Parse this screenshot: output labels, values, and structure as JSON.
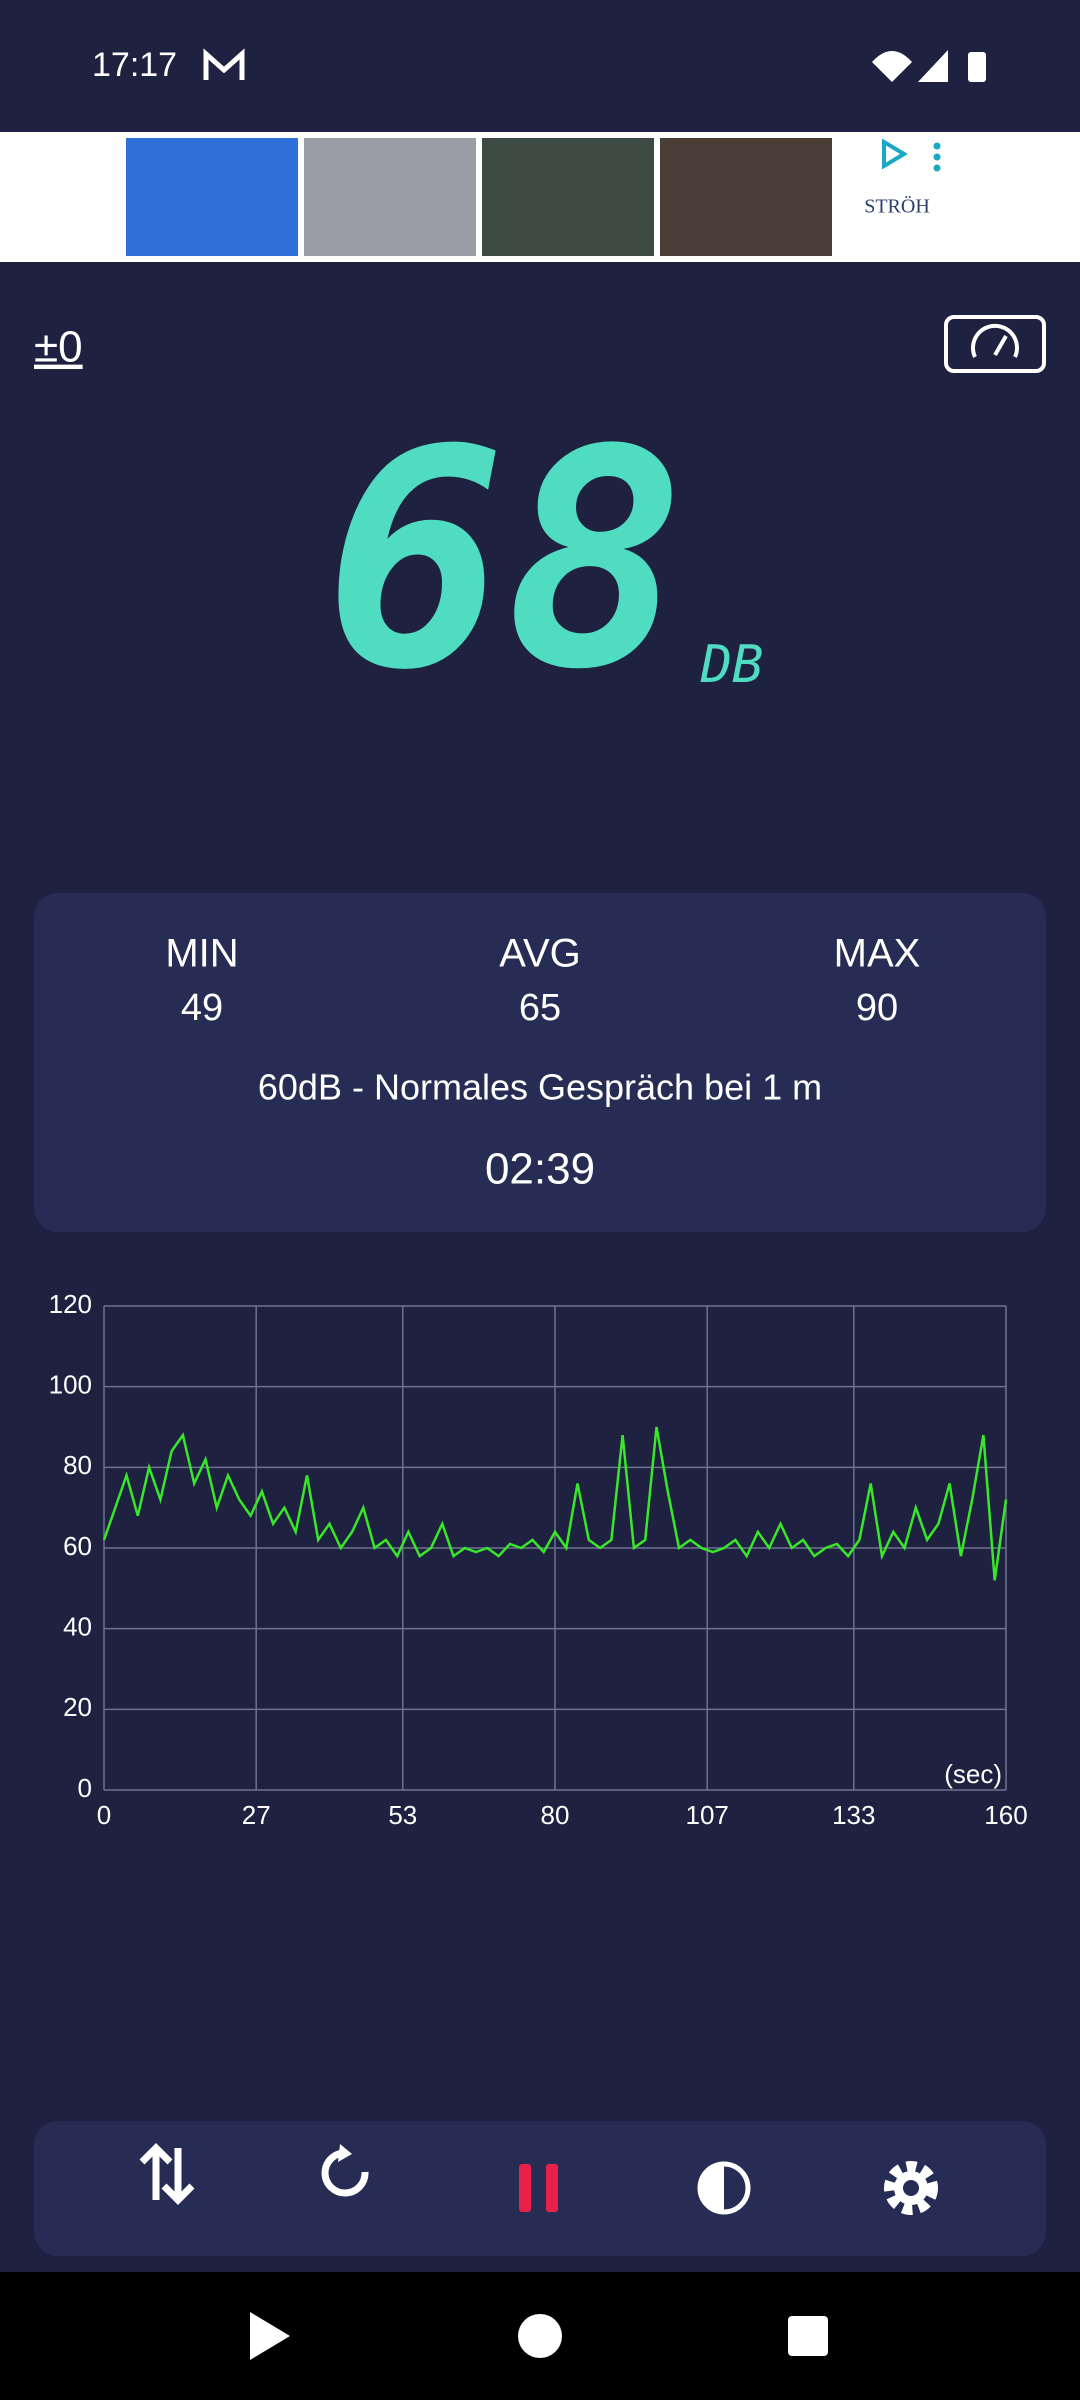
{
  "status_bar": {
    "time": "17:17"
  },
  "ad": {
    "brand": "STRÖH"
  },
  "calibration": "±0",
  "reading": {
    "value": "68",
    "unit": "DB"
  },
  "stats": {
    "min_label": "MIN",
    "min": "49",
    "avg_label": "AVG",
    "avg": "65",
    "max_label": "MAX",
    "max": "90",
    "description": "60dB - Normales Gespräch bei 1 m",
    "timer": "02:39"
  },
  "chart_data": {
    "type": "line",
    "x_unit_label": "(sec)",
    "xlim": [
      0,
      160
    ],
    "xticks": [
      0,
      27,
      53,
      80,
      107,
      133,
      160
    ],
    "ylim": [
      0,
      120
    ],
    "yticks": [
      0,
      20,
      40,
      60,
      80,
      100,
      120
    ],
    "grid": true,
    "series": [
      {
        "name": "dB",
        "color": "#39e62a",
        "x": [
          0,
          2,
          4,
          6,
          8,
          10,
          12,
          14,
          16,
          18,
          20,
          22,
          24,
          26,
          28,
          30,
          32,
          34,
          36,
          38,
          40,
          42,
          44,
          46,
          48,
          50,
          52,
          54,
          56,
          58,
          60,
          62,
          64,
          66,
          68,
          70,
          72,
          74,
          76,
          78,
          80,
          82,
          84,
          86,
          88,
          90,
          92,
          94,
          96,
          98,
          100,
          102,
          104,
          106,
          108,
          110,
          112,
          114,
          116,
          118,
          120,
          122,
          124,
          126,
          128,
          130,
          132,
          134,
          136,
          138,
          140,
          142,
          144,
          146,
          148,
          150,
          152,
          154,
          156,
          158,
          160
        ],
        "values": [
          62,
          70,
          78,
          68,
          80,
          72,
          84,
          88,
          76,
          82,
          70,
          78,
          72,
          68,
          74,
          66,
          70,
          64,
          78,
          62,
          66,
          60,
          64,
          70,
          60,
          62,
          58,
          64,
          58,
          60,
          66,
          58,
          60,
          59,
          60,
          58,
          61,
          60,
          62,
          59,
          64,
          60,
          76,
          62,
          60,
          62,
          88,
          60,
          62,
          90,
          74,
          60,
          62,
          60,
          59,
          60,
          62,
          58,
          64,
          60,
          66,
          60,
          62,
          58,
          60,
          61,
          58,
          62,
          76,
          58,
          64,
          60,
          70,
          62,
          66,
          76,
          58,
          72,
          88,
          52,
          72
        ]
      }
    ]
  }
}
